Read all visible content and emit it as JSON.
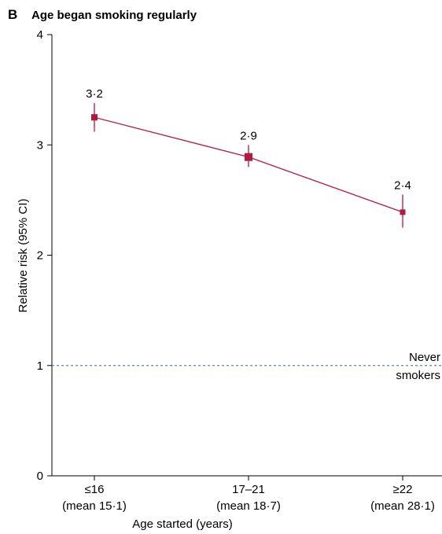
{
  "panel": {
    "letter": "B",
    "title": "Age began smoking regularly"
  },
  "chart_data": {
    "type": "line",
    "title": "Age began smoking regularly",
    "xlabel": "Age started (years)",
    "ylabel": "Relative risk (95% CI)",
    "ylim": [
      0,
      4
    ],
    "yticks": [
      0,
      1,
      2,
      3,
      4
    ],
    "grid": false,
    "categories": [
      {
        "label": "≤16",
        "sublabel": "(mean 15·1)"
      },
      {
        "label": "17–21",
        "sublabel": "(mean 18·7)"
      },
      {
        "label": "≥22",
        "sublabel": "(mean 28·1)"
      }
    ],
    "series": [
      {
        "values": [
          3.25,
          2.89,
          2.39
        ],
        "ci_low": [
          3.12,
          2.8,
          2.25
        ],
        "ci_high": [
          3.38,
          3.0,
          2.55
        ],
        "data_labels": [
          "3·2",
          "2·9",
          "2·4"
        ],
        "color": "#b5173f"
      }
    ],
    "reference_line": {
      "value": 1,
      "label_line1": "Never",
      "label_line2": "smokers",
      "color": "#5b87a8"
    }
  }
}
